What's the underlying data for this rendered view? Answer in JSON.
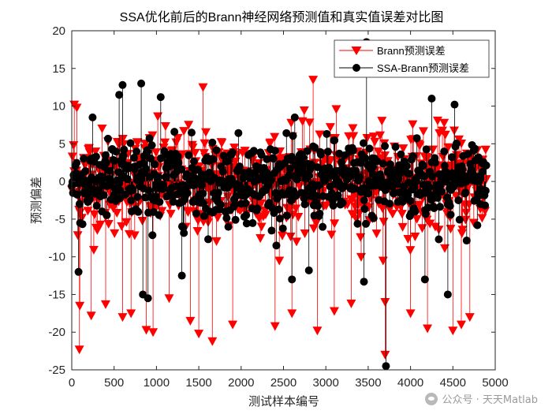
{
  "chart_data": {
    "type": "stem",
    "title": "SSA优化前后的Brann神经网络预测值和真实值误差对比图",
    "xlabel": "测试样本编号",
    "ylabel": "预测偏差",
    "xlim": [
      0,
      5000
    ],
    "ylim": [
      -25,
      20
    ],
    "xticks": [
      0,
      500,
      1000,
      1500,
      2000,
      2500,
      3000,
      3500,
      4000,
      4500,
      5000
    ],
    "yticks": [
      -25,
      -20,
      -15,
      -10,
      -5,
      0,
      5,
      10,
      15,
      20
    ],
    "legend_position": "top-right",
    "n_samples": 4900,
    "series": [
      {
        "name": "Brann预测误差",
        "color": "#ff0000",
        "marker": "triangle-down",
        "typical_range": [
          -9,
          9
        ],
        "notable_points": [
          [
            30,
            10.2
          ],
          [
            60,
            9.8
          ],
          [
            90,
            -22.3
          ],
          [
            95,
            -16.5
          ],
          [
            230,
            -17.8
          ],
          [
            400,
            -16.3
          ],
          [
            600,
            -18
          ],
          [
            700,
            -17.5
          ],
          [
            880,
            -19.7
          ],
          [
            960,
            -20
          ],
          [
            1150,
            -15.5
          ],
          [
            1400,
            -18.5
          ],
          [
            1500,
            -20.2
          ],
          [
            1550,
            12.5
          ],
          [
            1660,
            -21.2
          ],
          [
            1900,
            -19
          ],
          [
            2400,
            -19.2
          ],
          [
            2600,
            -17.5
          ],
          [
            2850,
            13.5
          ],
          [
            2900,
            -19.8
          ],
          [
            3100,
            -17.2
          ],
          [
            3300,
            -16.2
          ],
          [
            3700,
            -16
          ],
          [
            3700,
            -23
          ],
          [
            4000,
            -17.5
          ],
          [
            4200,
            -19.5
          ],
          [
            4500,
            -19.8
          ],
          [
            4600,
            -19
          ],
          [
            4700,
            -18
          ]
        ]
      },
      {
        "name": "SSA-Brann预测误差",
        "color": "#000000",
        "marker": "circle",
        "typical_range": [
          -7,
          7
        ],
        "notable_points": [
          [
            80,
            -12
          ],
          [
            600,
            12.8
          ],
          [
            560,
            11.5
          ],
          [
            820,
            13
          ],
          [
            840,
            -15
          ],
          [
            900,
            -15.5
          ],
          [
            1050,
            11.2
          ],
          [
            1300,
            -12.5
          ],
          [
            2600,
            -13
          ],
          [
            2800,
            -11.8
          ],
          [
            3450,
            -13.3
          ],
          [
            3480,
            18.5
          ],
          [
            3710,
            -24.5
          ],
          [
            4170,
            -13
          ],
          [
            4440,
            -15
          ],
          [
            4520,
            10.2
          ],
          [
            4250,
            11
          ]
        ]
      }
    ]
  },
  "watermark": {
    "text": "公众号 · 天天Matlab",
    "icon": "wechat-icon"
  }
}
